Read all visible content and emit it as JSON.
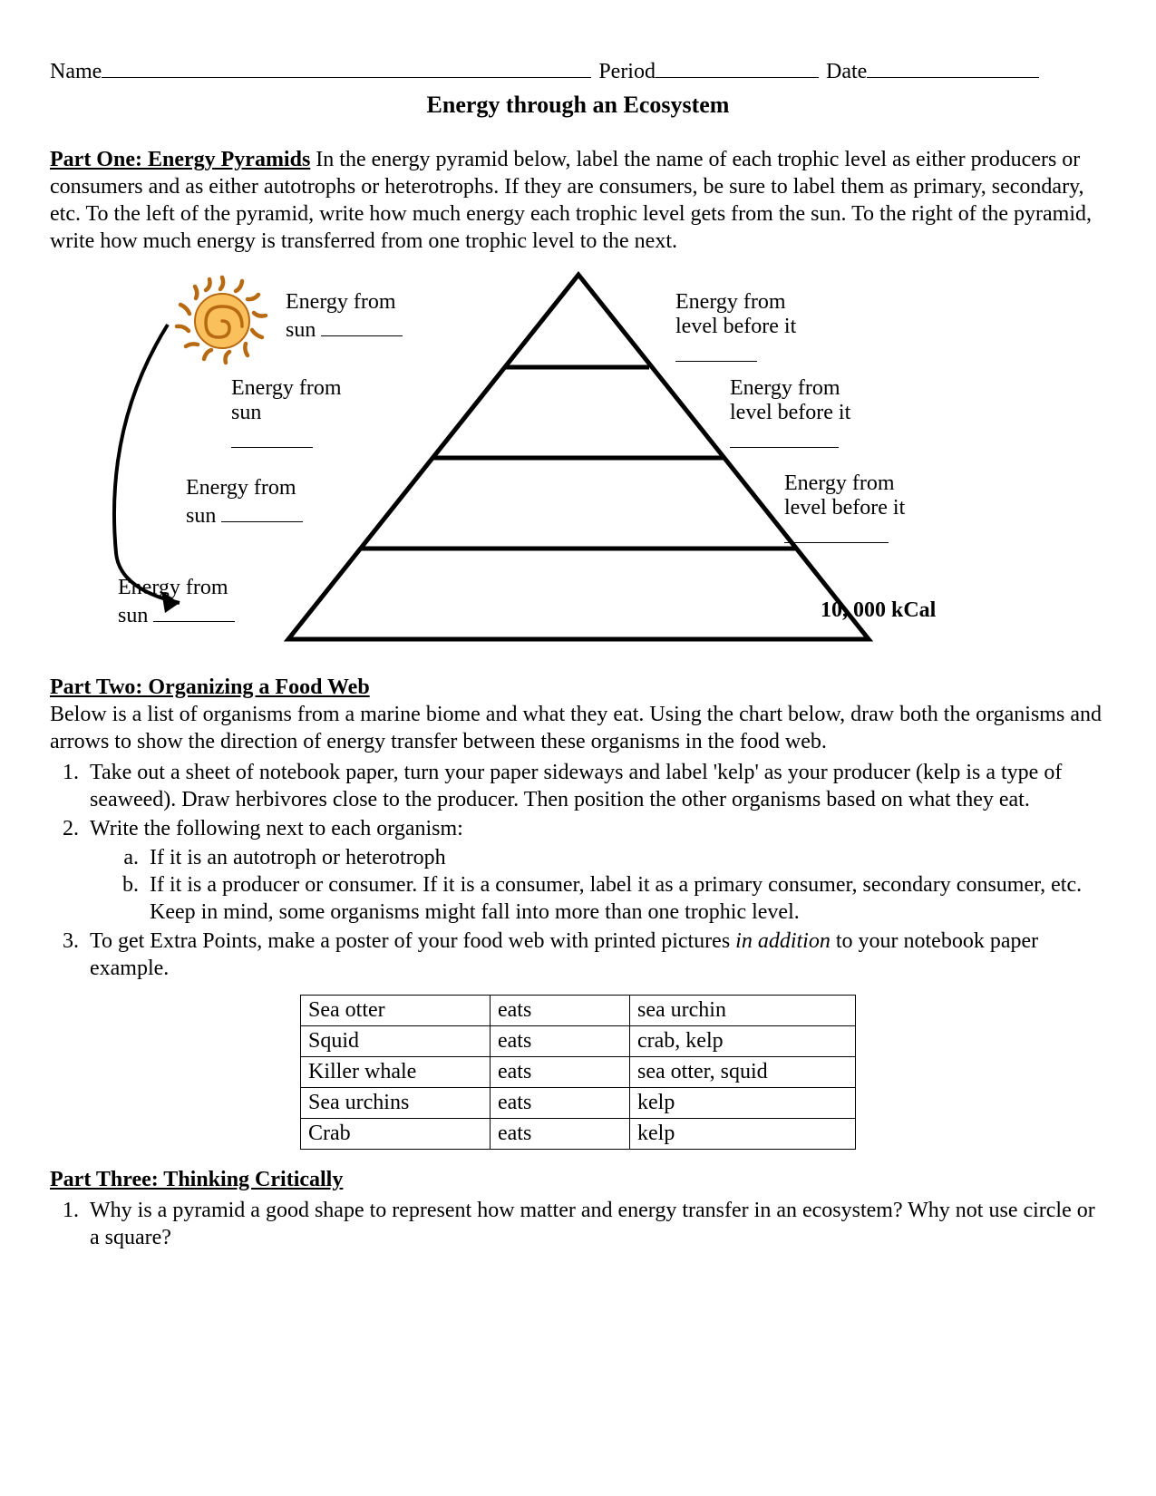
{
  "header": {
    "name_label": "Name",
    "period_label": "Period",
    "date_label": "Date"
  },
  "title": "Energy through an Ecosystem",
  "part1": {
    "heading": "Part One: Energy Pyramids",
    "text": " In the energy pyramid below, label the name of each trophic level as either producers or consumers and as either autotrophs or heterotrophs. If they are consumers, be sure to label them as primary, secondary, etc. To the left of the pyramid, write how much energy each trophic level gets from the sun. To the right of the pyramid, write how much energy is transferred from one trophic level to the next."
  },
  "diagram": {
    "pyramid": {
      "stroke": "#000000",
      "stroke_width": 4,
      "levels": 4,
      "base_energy_label": "10, 000 kCal"
    },
    "sun": {
      "body_fill": "#f9c05c",
      "ray_stroke": "#b86a12",
      "spiral_stroke": "#b86a12"
    },
    "arrow_stroke": "#000000",
    "left_labels": {
      "prefix": "Energy from",
      "second": "sun"
    },
    "right_labels": {
      "prefix": "Energy from",
      "second": "level before it"
    }
  },
  "part2": {
    "heading": "Part Two: Organizing a Food Web",
    "intro": "Below is a list of organisms from a marine biome and what they eat.  Using the chart below, draw both the organisms and arrows to show the direction of energy transfer between these organisms in the food web.",
    "steps": [
      "Take out a sheet of notebook paper, turn your paper sideways and label 'kelp' as your producer (kelp is a type of seaweed). Draw herbivores close to the producer. Then position the other organisms based on what they eat.",
      "Write the following next to each organism:"
    ],
    "substeps": [
      "If it is an autotroph or heterotroph",
      "If it is a producer or consumer. If it is a consumer, label it as a primary consumer, secondary consumer, etc. Keep in mind, some organisms might fall into more than one trophic level."
    ],
    "step3_pre": "To get Extra Points, make a poster of your food web with printed pictures ",
    "step3_italic": "in addition",
    "step3_post": " to your notebook paper example."
  },
  "food_table": {
    "rows": [
      [
        "Sea otter",
        "eats",
        "sea urchin"
      ],
      [
        "Squid",
        "eats",
        "crab, kelp"
      ],
      [
        "Killer whale",
        "eats",
        "sea otter, squid"
      ],
      [
        "Sea urchins",
        "eats",
        "kelp"
      ],
      [
        "Crab",
        "eats",
        "kelp"
      ]
    ]
  },
  "part3": {
    "heading": "Part Three: Thinking Critically",
    "q1": "Why is a pyramid a good shape to represent how matter and energy transfer in an ecosystem?  Why not use circle or a square?"
  }
}
